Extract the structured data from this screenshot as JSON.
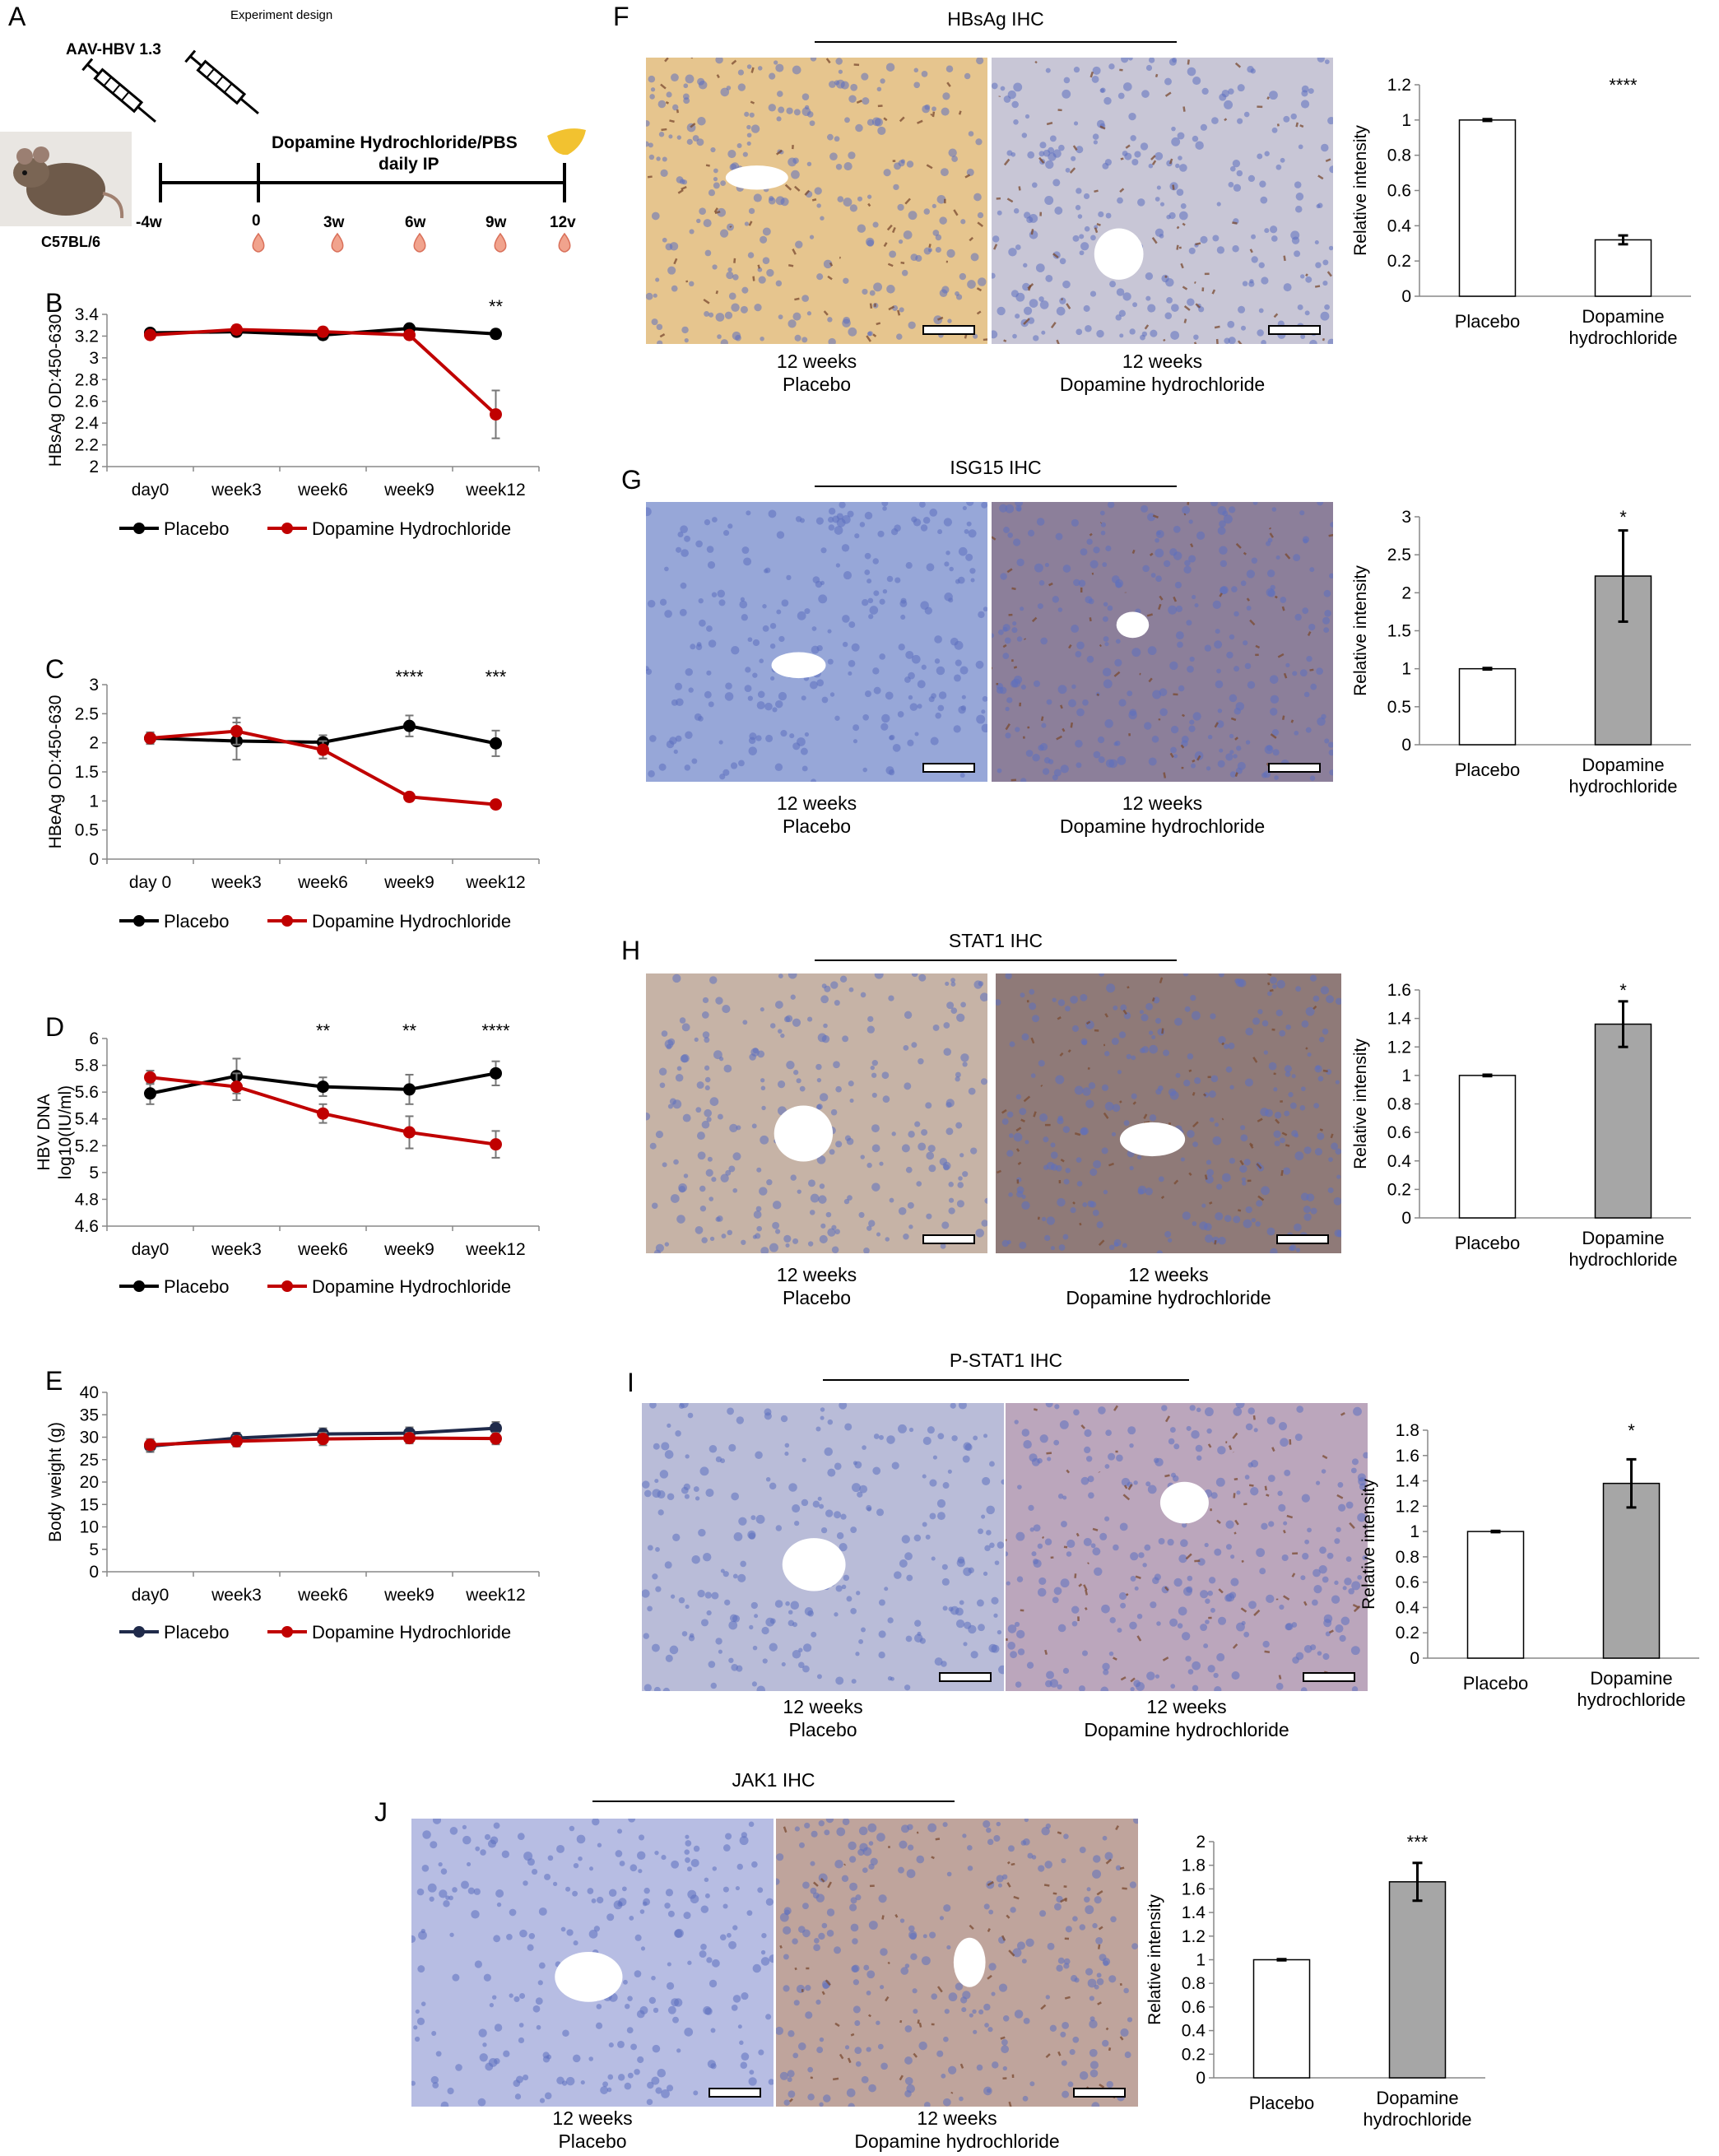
{
  "panel_labels": {
    "A": "A",
    "B": "B",
    "C": "C",
    "D": "D",
    "E": "E",
    "F": "F",
    "G": "G",
    "H": "H",
    "I": "I",
    "J": "J"
  },
  "design": {
    "title": "Experiment design",
    "virus": "AAV-HBV 1.3",
    "treatment_line1": "Dopamine Hydrochloride/PBS",
    "treatment_line2": "daily IP",
    "mouse": "C57BL/6",
    "timepoints": [
      "-4w",
      "0",
      "3w",
      "6w",
      "9w",
      "12v"
    ]
  },
  "ihc": [
    {
      "id": "F",
      "title": "HBsAg IHC",
      "left_cap": [
        "12 weeks",
        "Placebo"
      ],
      "right_cap": [
        "12 weeks",
        "Dopamine hydrochloride"
      ],
      "left_bg": "#e6c58e",
      "right_bg": "#c8c6d6"
    },
    {
      "id": "G",
      "title": "ISG15 IHC",
      "left_cap": [
        "12 weeks",
        "Placebo"
      ],
      "right_cap": [
        "12 weeks",
        "Dopamine hydrochloride"
      ],
      "left_bg": "#97a7d8",
      "right_bg": "#8c7f9a"
    },
    {
      "id": "H",
      "title": "STAT1 IHC",
      "left_cap": [
        "12 weeks",
        "Placebo"
      ],
      "right_cap": [
        "12 weeks",
        "Dopamine hydrochloride"
      ],
      "left_bg": "#c6b3a6",
      "right_bg": "#8f7a78"
    },
    {
      "id": "I",
      "title": "P-STAT1 IHC",
      "left_cap": [
        "12 weeks",
        "Placebo"
      ],
      "right_cap": [
        "12 weeks",
        "Dopamine hydrochloride"
      ],
      "left_bg": "#b9bcd8",
      "right_bg": "#bba6bc"
    },
    {
      "id": "J",
      "title": "JAK1 IHC",
      "left_cap": [
        "12 weeks",
        "Placebo"
      ],
      "right_cap": [
        "12 weeks",
        "Dopamine hydrochloride"
      ],
      "left_bg": "#b7bde3",
      "right_bg": "#bfa49c"
    }
  ],
  "chart_data": [
    {
      "id": "B",
      "type": "line",
      "ylabel": "HBsAg OD:450-630",
      "categories": [
        "day0",
        "week3",
        "week6",
        "week9",
        "week12"
      ],
      "ylim": [
        2,
        3.4
      ],
      "ticks": [
        "2",
        "2.2",
        "2.4",
        "2.6",
        "2.8",
        "3",
        "3.2",
        "3.4"
      ],
      "series": [
        {
          "name": "Placebo",
          "color": "#000000",
          "values": [
            3.23,
            3.24,
            3.21,
            3.27,
            3.22
          ],
          "err": [
            0.02,
            0.02,
            0.04,
            0.02,
            0.04
          ]
        },
        {
          "name": "Dopamine Hydrochloride",
          "color": "#c00000",
          "values": [
            3.21,
            3.26,
            3.24,
            3.21,
            2.48
          ],
          "err": [
            0.02,
            0.04,
            0.04,
            0.03,
            0.22
          ]
        }
      ],
      "sig": [
        "",
        "",
        "",
        "",
        "**"
      ]
    },
    {
      "id": "C",
      "type": "line",
      "ylabel": "HBeAg OD:450-630",
      "categories": [
        "day 0",
        "week3",
        "week6",
        "week9",
        "week12"
      ],
      "ylim": [
        0,
        3
      ],
      "ticks": [
        "0",
        "0.5",
        "1",
        "1.5",
        "2",
        "2.5",
        "3"
      ],
      "series": [
        {
          "name": "Placebo",
          "color": "#000000",
          "values": [
            2.08,
            2.03,
            2.01,
            2.29,
            1.99
          ],
          "err": [
            0.1,
            0.32,
            0.12,
            0.18,
            0.22
          ]
        },
        {
          "name": "Dopamine Hydrochloride",
          "color": "#c00000",
          "values": [
            2.08,
            2.2,
            1.88,
            1.07,
            0.94
          ],
          "err": [
            0.1,
            0.23,
            0.15,
            0.07,
            0.03
          ]
        }
      ],
      "sig": [
        "",
        "",
        "",
        "****",
        "***"
      ]
    },
    {
      "id": "D",
      "type": "line",
      "ylabel": "HBV DNA log10(IU/ml)",
      "ylabel_lines": [
        "HBV DNA",
        "log10(IU/ml)"
      ],
      "categories": [
        "day0",
        "week3",
        "week6",
        "week9",
        "week12"
      ],
      "ylim": [
        4.6,
        6
      ],
      "ticks": [
        "4.6",
        "4.8",
        "5",
        "5.2",
        "5.4",
        "5.6",
        "5.8",
        "6"
      ],
      "series": [
        {
          "name": "Placebo",
          "color": "#000000",
          "values": [
            5.59,
            5.72,
            5.64,
            5.62,
            5.74
          ],
          "err": [
            0.08,
            0.13,
            0.07,
            0.11,
            0.09
          ]
        },
        {
          "name": "Dopamine Hydrochloride",
          "color": "#c00000",
          "values": [
            5.71,
            5.64,
            5.44,
            5.3,
            5.21
          ],
          "err": [
            0.05,
            0.1,
            0.07,
            0.12,
            0.1
          ]
        }
      ],
      "sig": [
        "",
        "",
        "**",
        "**",
        "****"
      ]
    },
    {
      "id": "E",
      "type": "line",
      "ylabel": "Body weight (g)",
      "categories": [
        "day0",
        "week3",
        "week6",
        "week9",
        "week12"
      ],
      "ylim": [
        0,
        40
      ],
      "ticks": [
        "0",
        "5",
        "10",
        "15",
        "20",
        "25",
        "30",
        "35",
        "40"
      ],
      "series": [
        {
          "name": "Placebo",
          "color": "#1f2a4a",
          "values": [
            28,
            29.8,
            30.7,
            30.9,
            32
          ],
          "err": [
            1.3,
            1.2,
            1.3,
            1.3,
            1.4
          ]
        },
        {
          "name": "Dopamine Hydrochloride",
          "color": "#c00000",
          "values": [
            28.3,
            29.1,
            29.6,
            29.8,
            29.7
          ],
          "err": [
            1.3,
            1.2,
            1.4,
            1.2,
            1.3
          ]
        }
      ],
      "sig": [
        "",
        "",
        "",
        "",
        ""
      ]
    },
    {
      "id": "F",
      "type": "bar",
      "ylabel": "Relative intensity",
      "categories": [
        "Placebo",
        "Dopamine hydrochloride"
      ],
      "values": [
        1,
        0.32
      ],
      "err": [
        0.005,
        0.025
      ],
      "ylim": [
        0,
        1.2
      ],
      "ticks": [
        "0",
        "0.2",
        "0.4",
        "0.6",
        "0.8",
        "1",
        "1.2"
      ],
      "colors": [
        "#ffffff",
        "#ffffff"
      ],
      "sig": "****"
    },
    {
      "id": "G",
      "type": "bar",
      "ylabel": "Relative intensity",
      "categories": [
        "Placebo",
        "Dopamine hydrochloride"
      ],
      "values": [
        1,
        2.22
      ],
      "err": [
        0.01,
        0.6
      ],
      "ylim": [
        0,
        3
      ],
      "ticks": [
        "0",
        "0.5",
        "1",
        "1.5",
        "2",
        "2.5",
        "3"
      ],
      "colors": [
        "#ffffff",
        "#a6a6a6"
      ],
      "sig": "*"
    },
    {
      "id": "H",
      "type": "bar",
      "ylabel": "Relative intensity",
      "categories": [
        "Placebo",
        "Dopamine hydrochloride"
      ],
      "values": [
        1,
        1.36
      ],
      "err": [
        0.005,
        0.16
      ],
      "ylim": [
        0,
        1.6
      ],
      "ticks": [
        "0",
        "0.2",
        "0.4",
        "0.6",
        "0.8",
        "1",
        "1.2",
        "1.4",
        "1.6"
      ],
      "colors": [
        "#ffffff",
        "#a6a6a6"
      ],
      "sig": "*"
    },
    {
      "id": "I",
      "type": "bar",
      "ylabel": "Relative intensity",
      "categories": [
        "Placebo",
        "Dopamine hydrochloride"
      ],
      "values": [
        1,
        1.38
      ],
      "err": [
        0.005,
        0.19
      ],
      "ylim": [
        0,
        1.8
      ],
      "ticks": [
        "0",
        "0.2",
        "0.4",
        "0.6",
        "0.8",
        "1",
        "1.2",
        "1.4",
        "1.6",
        "1.8"
      ],
      "colors": [
        "#ffffff",
        "#a6a6a6"
      ],
      "sig": "*"
    },
    {
      "id": "J",
      "type": "bar",
      "ylabel": "Relative intensity",
      "categories": [
        "Placebo",
        "Dopamine hydrochloride"
      ],
      "values": [
        1,
        1.66
      ],
      "err": [
        0.005,
        0.16
      ],
      "ylim": [
        0,
        2
      ],
      "ticks": [
        "0",
        "0.2",
        "0.4",
        "0.6",
        "0.8",
        "1",
        "1.2",
        "1.4",
        "1.6",
        "1.8",
        "2"
      ],
      "colors": [
        "#ffffff",
        "#a6a6a6"
      ],
      "sig": "***"
    }
  ]
}
